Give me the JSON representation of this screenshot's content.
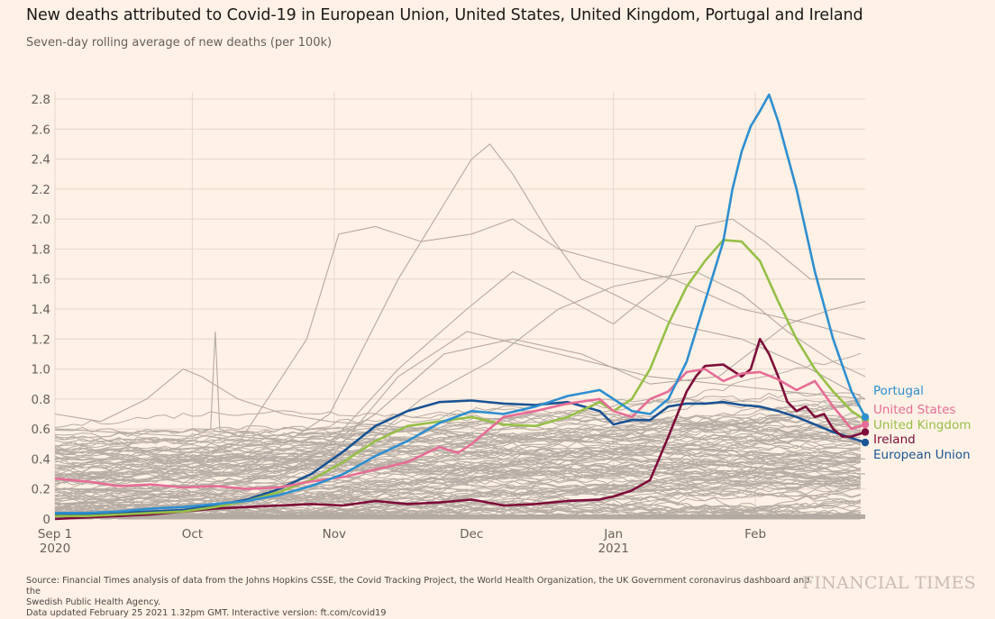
{
  "header": {
    "title": "New deaths attributed to Covid-19 in European Union, United States, United Kingdom, Portugal and Ireland",
    "subtitle": "Seven-day rolling average of new deaths (per 100k)"
  },
  "footer": {
    "source_line1": "Source: Financial Times analysis of data from the Johns Hopkins CSSE, the Covid Tracking Project, the World Health Organization, the UK Government coronavirus dashboard and the",
    "source_line2": "Swedish Public Health Agency.",
    "source_line3": "Data updated February 25 2021 1.32pm GMT. Interactive version: ft.com/covid19",
    "brand": "FINANCIAL TIMES"
  },
  "chart_data": {
    "type": "line",
    "title": "New deaths attributed to Covid-19 in European Union, United States, United Kingdom, Portugal and Ireland",
    "subtitle": "Seven-day rolling average of new deaths (per 100k)",
    "xlabel": "",
    "ylabel": "",
    "x_unit": "days since 2020-09-01",
    "xlim": [
      0,
      177
    ],
    "ylim": [
      0,
      2.8
    ],
    "grid": true,
    "yticks": [
      {
        "value": 0,
        "label": "0"
      },
      {
        "value": 0.2,
        "label": "0.2"
      },
      {
        "value": 0.4,
        "label": "0.4"
      },
      {
        "value": 0.6,
        "label": "0.6"
      },
      {
        "value": 0.8,
        "label": "0.8"
      },
      {
        "value": 1.0,
        "label": "1.0"
      },
      {
        "value": 1.2,
        "label": "1.2"
      },
      {
        "value": 1.4,
        "label": "1.4"
      },
      {
        "value": 1.6,
        "label": "1.6"
      },
      {
        "value": 1.8,
        "label": "1.8"
      },
      {
        "value": 2.0,
        "label": "2.0"
      },
      {
        "value": 2.2,
        "label": "2.2"
      },
      {
        "value": 2.4,
        "label": "2.4"
      },
      {
        "value": 2.6,
        "label": "2.6"
      },
      {
        "value": 2.8,
        "label": "2.8"
      }
    ],
    "xticks": [
      {
        "value": 0,
        "label": "Sep 1",
        "sublabel": "2020"
      },
      {
        "value": 30,
        "label": "Oct",
        "sublabel": ""
      },
      {
        "value": 61,
        "label": "Nov",
        "sublabel": ""
      },
      {
        "value": 91,
        "label": "Dec",
        "sublabel": ""
      },
      {
        "value": 122,
        "label": "Jan",
        "sublabel": "2021"
      },
      {
        "value": 153,
        "label": "Feb",
        "sublabel": ""
      }
    ],
    "legend_placement": "right (end-of-line labels)",
    "series": [
      {
        "name": "Portugal",
        "color": "#2e8fd0",
        "x": [
          0,
          7,
          14,
          21,
          28,
          35,
          42,
          49,
          56,
          63,
          70,
          77,
          84,
          91,
          98,
          105,
          112,
          119,
          126,
          130,
          134,
          138,
          142,
          146,
          148,
          150,
          152,
          154,
          156,
          158,
          162,
          166,
          170,
          174,
          177
        ],
        "y": [
          0.04,
          0.04,
          0.05,
          0.07,
          0.08,
          0.1,
          0.12,
          0.16,
          0.22,
          0.3,
          0.42,
          0.52,
          0.64,
          0.72,
          0.7,
          0.75,
          0.82,
          0.86,
          0.72,
          0.7,
          0.8,
          1.05,
          1.45,
          1.85,
          2.2,
          2.45,
          2.62,
          2.72,
          2.83,
          2.65,
          2.2,
          1.65,
          1.2,
          0.85,
          0.68
        ]
      },
      {
        "name": "United States",
        "color": "#e66d96",
        "x": [
          0,
          7,
          14,
          21,
          28,
          35,
          42,
          49,
          56,
          63,
          70,
          77,
          84,
          88,
          91,
          98,
          105,
          112,
          119,
          122,
          126,
          130,
          134,
          138,
          142,
          146,
          150,
          154,
          158,
          162,
          166,
          170,
          174,
          177
        ],
        "y": [
          0.27,
          0.25,
          0.22,
          0.23,
          0.21,
          0.22,
          0.2,
          0.21,
          0.25,
          0.28,
          0.33,
          0.38,
          0.48,
          0.44,
          0.5,
          0.68,
          0.72,
          0.77,
          0.8,
          0.72,
          0.68,
          0.8,
          0.85,
          0.98,
          1.0,
          0.92,
          0.97,
          0.98,
          0.93,
          0.86,
          0.92,
          0.75,
          0.6,
          0.63
        ]
      },
      {
        "name": "United Kingdom",
        "color": "#96bf48",
        "x": [
          0,
          7,
          14,
          21,
          28,
          35,
          42,
          49,
          56,
          63,
          70,
          77,
          84,
          91,
          98,
          105,
          112,
          119,
          122,
          126,
          130,
          134,
          138,
          142,
          146,
          150,
          154,
          158,
          162,
          166,
          170,
          174,
          177
        ],
        "y": [
          0.02,
          0.02,
          0.03,
          0.04,
          0.05,
          0.08,
          0.12,
          0.18,
          0.26,
          0.38,
          0.52,
          0.62,
          0.65,
          0.68,
          0.63,
          0.62,
          0.68,
          0.78,
          0.72,
          0.8,
          1.0,
          1.3,
          1.55,
          1.72,
          1.86,
          1.85,
          1.72,
          1.45,
          1.2,
          1.0,
          0.85,
          0.72,
          0.66
        ]
      },
      {
        "name": "Ireland",
        "color": "#7d0d3a",
        "x": [
          0,
          7,
          14,
          21,
          28,
          35,
          42,
          49,
          56,
          63,
          70,
          77,
          84,
          91,
          98,
          105,
          112,
          119,
          122,
          126,
          130,
          134,
          138,
          140,
          142,
          146,
          150,
          152,
          154,
          156,
          158,
          160,
          162,
          164,
          166,
          168,
          170,
          172,
          174,
          177
        ],
        "y": [
          0.0,
          0.01,
          0.02,
          0.03,
          0.05,
          0.07,
          0.08,
          0.09,
          0.1,
          0.09,
          0.12,
          0.1,
          0.11,
          0.13,
          0.09,
          0.1,
          0.12,
          0.13,
          0.15,
          0.19,
          0.26,
          0.55,
          0.85,
          0.95,
          1.02,
          1.03,
          0.95,
          1.0,
          1.2,
          1.1,
          0.95,
          0.78,
          0.72,
          0.75,
          0.68,
          0.7,
          0.6,
          0.55,
          0.55,
          0.58
        ]
      },
      {
        "name": "European Union",
        "color": "#1a5494",
        "x": [
          0,
          7,
          14,
          21,
          28,
          35,
          42,
          49,
          56,
          63,
          70,
          77,
          84,
          91,
          98,
          105,
          112,
          119,
          122,
          126,
          130,
          134,
          138,
          142,
          146,
          150,
          154,
          158,
          162,
          166,
          170,
          174,
          177
        ],
        "y": [
          0.03,
          0.03,
          0.04,
          0.05,
          0.06,
          0.09,
          0.13,
          0.2,
          0.3,
          0.45,
          0.62,
          0.72,
          0.78,
          0.79,
          0.77,
          0.76,
          0.78,
          0.72,
          0.63,
          0.66,
          0.66,
          0.75,
          0.77,
          0.77,
          0.78,
          0.76,
          0.75,
          0.72,
          0.68,
          0.63,
          0.58,
          0.54,
          0.51
        ]
      }
    ],
    "background_series_note": "approx. 150 other countries drawn in grey (#b3aaa2); representative shapes below",
    "background_series": [
      {
        "x": [
          0,
          20,
          40,
          60,
          75,
          85,
          91,
          95,
          100,
          108,
          115,
          122,
          135,
          150,
          165,
          177
        ],
        "y": [
          0.3,
          0.25,
          0.3,
          0.7,
          1.6,
          2.1,
          2.4,
          2.5,
          2.3,
          1.9,
          1.6,
          1.5,
          1.3,
          1.2,
          1.0,
          0.8
        ]
      },
      {
        "x": [
          0,
          20,
          40,
          55,
          62,
          70,
          80,
          91,
          100,
          110,
          122,
          135,
          150,
          165,
          177
        ],
        "y": [
          0.3,
          0.3,
          0.5,
          1.2,
          1.9,
          1.95,
          1.85,
          1.9,
          2.0,
          1.8,
          1.7,
          1.6,
          1.4,
          1.3,
          1.2
        ]
      },
      {
        "x": [
          0,
          20,
          40,
          60,
          75,
          90,
          100,
          110,
          122,
          134,
          140,
          148,
          155,
          165,
          177
        ],
        "y": [
          0.2,
          0.2,
          0.25,
          0.5,
          1.0,
          1.4,
          1.65,
          1.5,
          1.3,
          1.6,
          1.95,
          2.0,
          1.85,
          1.6,
          1.6
        ]
      },
      {
        "x": [
          0,
          25,
          50,
          70,
          85,
          100,
          115,
          130,
          145,
          160,
          170,
          177
        ],
        "y": [
          0.1,
          0.15,
          0.3,
          0.7,
          1.1,
          1.2,
          1.1,
          0.9,
          0.95,
          1.3,
          1.4,
          1.45
        ]
      },
      {
        "x": [
          0,
          10,
          20,
          28,
          32,
          40,
          50,
          60,
          80,
          100,
          122,
          150,
          177
        ],
        "y": [
          0.7,
          0.65,
          0.8,
          1.0,
          0.95,
          0.8,
          0.7,
          0.65,
          0.6,
          0.55,
          0.5,
          0.45,
          0.4
        ]
      },
      {
        "x": [
          0,
          30,
          34,
          35,
          36,
          40,
          60,
          90,
          120,
          150,
          177
        ],
        "y": [
          0.6,
          0.55,
          0.6,
          1.25,
          0.6,
          0.55,
          0.5,
          0.45,
          0.4,
          0.35,
          0.3
        ]
      },
      {
        "x": [
          0,
          30,
          60,
          80,
          95,
          110,
          122,
          130,
          140,
          150,
          160,
          170,
          177
        ],
        "y": [
          0.1,
          0.12,
          0.3,
          0.8,
          1.05,
          1.4,
          1.55,
          1.6,
          1.65,
          1.5,
          1.25,
          1.05,
          0.95
        ]
      },
      {
        "x": [
          0,
          30,
          60,
          75,
          90,
          110,
          130,
          145,
          160,
          177
        ],
        "y": [
          0.2,
          0.18,
          0.4,
          0.95,
          1.25,
          1.1,
          0.95,
          0.9,
          0.85,
          0.8
        ]
      }
    ]
  }
}
